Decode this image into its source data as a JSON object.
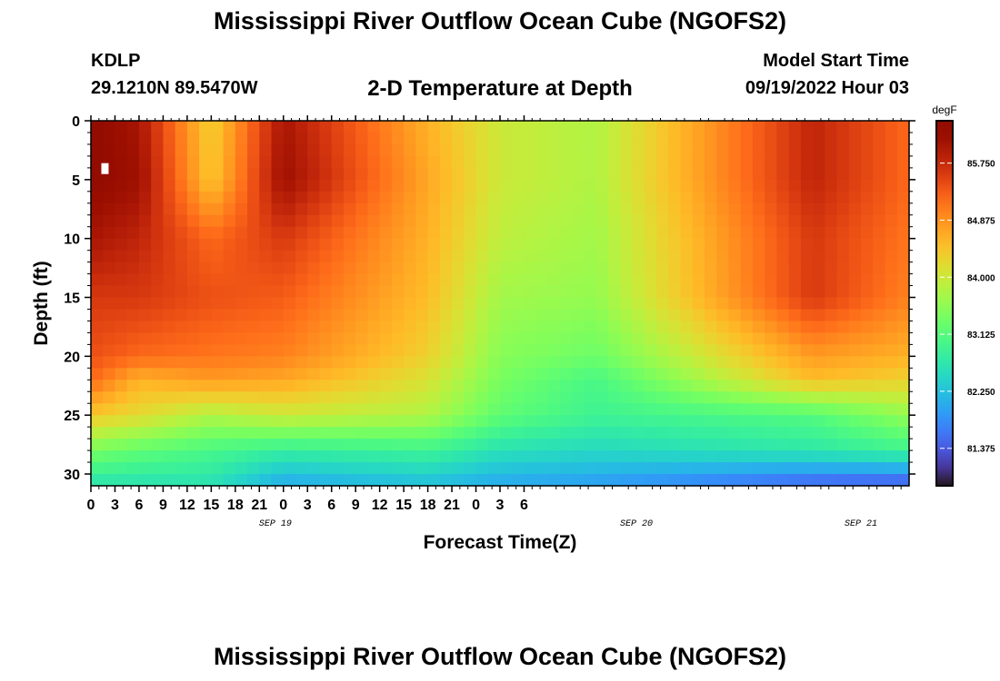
{
  "page": {
    "title": "Mississippi River Outflow Ocean Cube (NGOFS2)",
    "footer_title": "Mississippi River Outflow Ocean Cube (NGOFS2)",
    "station": "KDLP",
    "location": "29.1210N  89.5470W",
    "subtitle": "2-D Temperature at Depth",
    "model_start_label": "Model Start Time",
    "model_start_value": "09/19/2022 Hour 03"
  },
  "chart_data": {
    "type": "heatmap",
    "xlabel": "Forecast Time(Z)",
    "ylabel": "Depth (ft)",
    "x_hours_range": [
      0,
      102
    ],
    "ylim": [
      0,
      31
    ],
    "y_inverted": true,
    "x_tick_labels": [
      "0",
      "3",
      "6",
      "9",
      "12",
      "15",
      "18",
      "21",
      "0",
      "3",
      "6",
      "9",
      "12",
      "15",
      "18",
      "21",
      "0",
      "3",
      "6"
    ],
    "y_ticks": [
      0,
      5,
      10,
      15,
      20,
      25,
      30
    ],
    "date_labels": [
      {
        "label": "SEP 19",
        "hour": 23
      },
      {
        "label": "SEP 20",
        "hour": 68
      },
      {
        "label": "SEP 21",
        "hour": 96
      }
    ],
    "colorbar": {
      "unit": "degF",
      "range": [
        80.8,
        86.4
      ],
      "ticks": [
        "85.750",
        "84.875",
        "84.000",
        "83.125",
        "82.250",
        "81.375"
      ],
      "colormap": "turbo"
    },
    "depth_axis_ft": [
      0,
      5,
      10,
      15,
      20,
      22,
      25,
      28,
      31
    ],
    "time_axis_hours": [
      0,
      6,
      15,
      24,
      42,
      51,
      63,
      90,
      102
    ],
    "values_degF": [
      [
        86.3,
        86.0,
        84.3,
        86.0,
        84.6,
        84.0,
        83.8,
        85.8,
        85.2
      ],
      [
        86.3,
        86.1,
        84.4,
        86.1,
        84.7,
        84.0,
        83.8,
        85.8,
        85.2
      ],
      [
        86.0,
        85.8,
        85.2,
        85.6,
        84.6,
        83.9,
        83.7,
        85.6,
        85.1
      ],
      [
        85.6,
        85.6,
        85.4,
        85.3,
        84.5,
        83.7,
        83.6,
        85.6,
        85.0
      ],
      [
        85.4,
        85.2,
        85.1,
        85.0,
        84.3,
        83.5,
        83.3,
        84.8,
        84.6
      ],
      [
        85.2,
        84.6,
        84.8,
        84.7,
        84.1,
        83.4,
        83.0,
        84.5,
        84.3
      ],
      [
        84.4,
        84.2,
        83.8,
        84.0,
        83.8,
        83.2,
        82.9,
        83.1,
        83.6
      ],
      [
        83.4,
        83.2,
        83.0,
        82.8,
        82.9,
        82.6,
        82.5,
        82.7,
        82.9
      ],
      [
        82.6,
        82.6,
        82.6,
        82.0,
        82.2,
        82.0,
        81.9,
        81.4,
        81.3
      ]
    ]
  }
}
